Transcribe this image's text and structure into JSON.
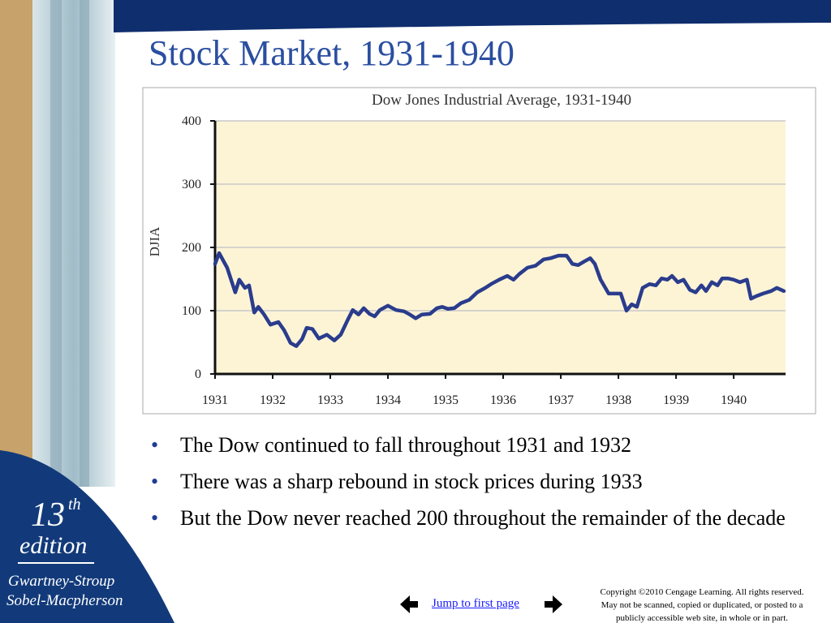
{
  "slide_title": "Stock Market, 1931-1940",
  "sidebar": {
    "edition_number": "13",
    "edition_suffix": "th",
    "edition_word": "edition",
    "authors": [
      "Gwartney-Stroup",
      "Sobel-Macpherson"
    ]
  },
  "chart_data": {
    "type": "line",
    "title": "Dow Jones Industrial Average, 1931-1940",
    "y_label": "DJIA",
    "color": "#2a3c8c",
    "grid": true,
    "xlim": [
      1931,
      1940.9
    ],
    "xticks": [
      1931,
      1932,
      1933,
      1934,
      1935,
      1936,
      1937,
      1938,
      1939,
      1940
    ],
    "ylim": [
      0,
      400
    ],
    "yticks": [
      0,
      100,
      200,
      300,
      400
    ],
    "x": [
      1931.0,
      1931.07,
      1931.21,
      1931.35,
      1931.42,
      1931.52,
      1931.59,
      1931.68,
      1931.75,
      1931.85,
      1931.96,
      1932.1,
      1932.2,
      1932.31,
      1932.41,
      1932.51,
      1932.59,
      1932.69,
      1932.8,
      1932.94,
      1933.07,
      1933.18,
      1933.3,
      1933.39,
      1933.49,
      1933.58,
      1933.68,
      1933.77,
      1933.86,
      1934.0,
      1934.14,
      1934.28,
      1934.38,
      1934.48,
      1934.59,
      1934.73,
      1934.85,
      1934.94,
      1935.04,
      1935.15,
      1935.27,
      1935.41,
      1935.55,
      1935.69,
      1935.79,
      1935.93,
      1936.07,
      1936.18,
      1936.28,
      1936.42,
      1936.56,
      1936.7,
      1936.82,
      1936.96,
      1937.1,
      1937.2,
      1937.3,
      1937.41,
      1937.51,
      1937.59,
      1937.69,
      1937.83,
      1938.04,
      1938.14,
      1938.23,
      1938.32,
      1938.42,
      1938.54,
      1938.65,
      1938.75,
      1938.85,
      1938.93,
      1939.03,
      1939.13,
      1939.24,
      1939.34,
      1939.44,
      1939.52,
      1939.62,
      1939.72,
      1939.8,
      1939.9,
      1940.0,
      1940.11,
      1940.23,
      1940.3,
      1940.39,
      1940.51,
      1940.65,
      1940.75,
      1940.87
    ],
    "values": [
      174,
      191,
      168,
      129,
      149,
      136,
      140,
      97,
      106,
      94,
      78,
      82,
      69,
      49,
      44,
      55,
      73,
      71,
      56,
      62,
      53,
      62,
      85,
      101,
      94,
      104,
      95,
      91,
      101,
      108,
      101,
      99,
      94,
      88,
      94,
      95,
      104,
      106,
      103,
      104,
      112,
      117,
      129,
      136,
      142,
      149,
      155,
      149,
      158,
      168,
      171,
      181,
      183,
      187,
      187,
      174,
      172,
      178,
      183,
      174,
      149,
      127,
      127,
      100,
      110,
      106,
      136,
      142,
      140,
      151,
      149,
      155,
      145,
      149,
      133,
      129,
      140,
      131,
      145,
      140,
      151,
      151,
      149,
      145,
      149,
      119,
      123,
      127,
      131,
      136,
      131
    ]
  },
  "bullets": [
    "The Dow continued to fall throughout 1931 and 1932",
    "There was a sharp rebound in stock prices during 1933",
    "But the Dow never reached 200 throughout the remainder of the decade"
  ],
  "footer": {
    "link": "Jump to first page",
    "copyright": [
      "Copyright ©2010 Cengage Learning. All rights reserved.",
      "May not be scanned, copied or duplicated, or posted to a",
      "publicly accessible web site, in whole or in part."
    ]
  }
}
